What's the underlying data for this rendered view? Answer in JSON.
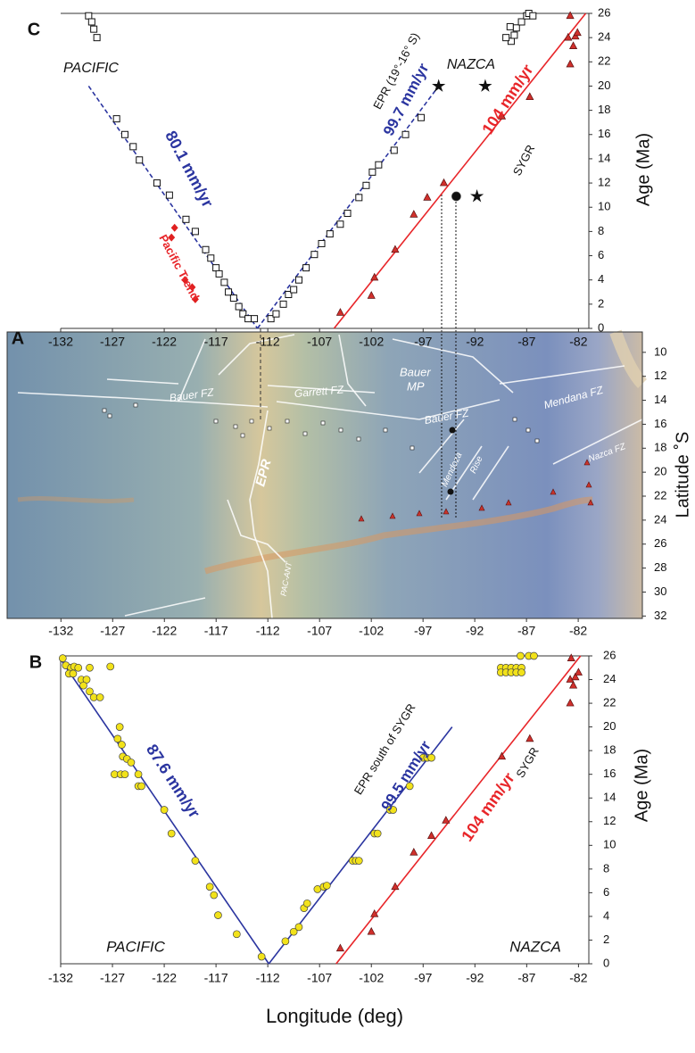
{
  "chart_data": [
    {
      "type": "scatter",
      "panel": "C",
      "ylabel": "Age (Ma)",
      "xlim": [
        -132,
        -81
      ],
      "ylim": [
        0,
        26
      ],
      "xticks": [
        -132,
        -127,
        -122,
        -117,
        -112,
        -107,
        -102,
        -97,
        -92,
        -87,
        -82
      ],
      "yticks": [
        0,
        2,
        4,
        6,
        8,
        10,
        12,
        14,
        16,
        18,
        20,
        22,
        24,
        26
      ],
      "annotations": [
        "PACIFIC",
        "NAZCA",
        "80.1 mm/yr",
        "EPR (19°-16° S)",
        "99.7 mm/yr",
        "104 mm/yr",
        "SYGR",
        "Pacific Trend"
      ],
      "series": [
        {
          "mode": "line",
          "color": "#2b35a0",
          "dash": true,
          "x": [
            -129.3,
            -113.0
          ],
          "values": [
            20,
            0
          ]
        },
        {
          "mode": "line",
          "color": "#2b35a0",
          "dash": true,
          "x": [
            -113.0,
            -95.5
          ],
          "values": [
            0,
            20
          ]
        },
        {
          "mode": "line",
          "color": "#e8262a",
          "dash": false,
          "x": [
            -105.6,
            -81.3
          ],
          "values": [
            0,
            26
          ]
        },
        {
          "mode": "markers",
          "marker": "square",
          "color": "#111111",
          "x": [
            -129.3,
            -129,
            -128.8,
            -128.5,
            -126.6,
            -125.8,
            -125,
            -124.4,
            -122.7,
            -121.5,
            -119.9,
            -119,
            -118,
            -117.5,
            -117,
            -116.7,
            -116.2,
            -115.8,
            -115.3,
            -114.8,
            -114.4,
            -113.9,
            -113.3,
            -111.7,
            -111.2,
            -110.5,
            -110,
            -109.5,
            -109,
            -108.3,
            -107.5,
            -106.8,
            -106,
            -105,
            -104.3,
            -103.2,
            -102.5,
            -101.9,
            -101.3,
            -99.8,
            -98.7,
            -97.2,
            -88.5,
            -88.2,
            -88,
            -87.5,
            -87,
            -86.8,
            -89,
            -88.6,
            -86.4
          ],
          "values": [
            25.8,
            25.3,
            24.7,
            24,
            17.3,
            16,
            15,
            13.9,
            12,
            11,
            9,
            8,
            6.5,
            5.8,
            5,
            4.5,
            3.8,
            3,
            2.5,
            1.8,
            1.2,
            0.8,
            0.8,
            0.8,
            1.2,
            2,
            2.8,
            3.2,
            4,
            5,
            6.1,
            7,
            7.8,
            8.6,
            9.5,
            10.8,
            11.8,
            12.9,
            13.5,
            14.7,
            16,
            17.4,
            23.7,
            24.2,
            24.8,
            25.3,
            25.8,
            26,
            24,
            24.9,
            25.8
          ]
        },
        {
          "mode": "markers",
          "marker": "triangle",
          "color": "#d0302c",
          "x": [
            -105,
            -102,
            -101.7,
            -99.7,
            -97.9,
            -96.6,
            -95,
            -89.4,
            -86.7,
            -82.8,
            -83,
            -82.3,
            -82.5,
            -82.1,
            -82.8
          ],
          "values": [
            1.3,
            2.7,
            4.2,
            6.5,
            9.4,
            10.8,
            12,
            17.5,
            19.1,
            21.8,
            24,
            24.1,
            23.3,
            24.4,
            25.8
          ]
        },
        {
          "mode": "markers",
          "marker": "diamond",
          "color": "#e02020",
          "x": [
            -121,
            -121.3,
            -120,
            -119.3,
            -119
          ],
          "values": [
            8.3,
            7.5,
            4,
            3.4,
            2.4
          ]
        },
        {
          "mode": "markers",
          "marker": "star",
          "color": "#111111",
          "x": [
            -95.5,
            -91,
            -91.8
          ],
          "values": [
            20,
            20,
            10.9
          ]
        },
        {
          "mode": "markers",
          "marker": "circle",
          "color": "#111111",
          "x": [
            -93.8
          ],
          "values": [
            10.9
          ]
        }
      ]
    },
    {
      "type": "map",
      "panel": "A",
      "ylabel": "Latitude ˚S",
      "xlim": [
        -137.2,
        -75.8
      ],
      "ylim": [
        8.3,
        32.2
      ],
      "y_inverted": true,
      "xticks": [
        -132,
        -127,
        -122,
        -117,
        -112,
        -107,
        -102,
        -97,
        -92,
        -87,
        -82
      ],
      "yticks": [
        10,
        12,
        14,
        16,
        18,
        20,
        22,
        24,
        26,
        28,
        30,
        32
      ],
      "labels": [
        "Bauer FZ",
        "Garrett FZ",
        "Bauer",
        "MP",
        "Mendana FZ",
        "Bauer FZ",
        "EPR",
        "Mendoza",
        "Rise",
        "Nazca FZ",
        "PAC-ANT"
      ],
      "series": []
    },
    {
      "type": "scatter",
      "panel": "B",
      "ylabel": "Age (Ma)",
      "xlabel": "Longitude (deg)",
      "xlim": [
        -132,
        -81
      ],
      "ylim": [
        0,
        26
      ],
      "xticks": [
        -132,
        -127,
        -122,
        -117,
        -112,
        -107,
        -102,
        -97,
        -92,
        -87,
        -82
      ],
      "yticks": [
        0,
        2,
        4,
        6,
        8,
        10,
        12,
        14,
        16,
        18,
        20,
        22,
        24,
        26
      ],
      "annotations": [
        "87.6 mm/yr",
        "EPR  south of  SYGR",
        "99.5 mm/yr",
        "104 mm/yr",
        "SYGR",
        "PACIFIC",
        "NAZCA"
      ],
      "series": [
        {
          "mode": "line",
          "color": "#2b35a0",
          "dash": false,
          "x": [
            -132,
            -111.9
          ],
          "values": [
            25.7,
            0
          ]
        },
        {
          "mode": "line",
          "color": "#2b35a0",
          "dash": false,
          "x": [
            -111.9,
            -94.2
          ],
          "values": [
            0,
            20
          ]
        },
        {
          "mode": "line",
          "color": "#e8262a",
          "dash": false,
          "x": [
            -105.4,
            -81.8
          ],
          "values": [
            0,
            26
          ]
        },
        {
          "mode": "markers",
          "marker": "circle",
          "color": "#f2e21a",
          "x": [
            -131.8,
            -131.5,
            -131,
            -130.7,
            -130.3,
            -131.2,
            -130.8,
            -130,
            -129.5,
            -129.8,
            -129.2,
            -128.8,
            -128.2,
            -129.2,
            -127.2,
            -126.3,
            -126.5,
            -126.1,
            -126,
            -125.6,
            -125.2,
            -126.8,
            -126.2,
            -125.8,
            -124.5,
            -124.5,
            -124.2,
            -122,
            -121.3,
            -119,
            -117.6,
            -117.2,
            -116.8,
            -115,
            -112.6,
            -110.3,
            -109.5,
            -109,
            -108.5,
            -108.2,
            -107.2,
            -106.6,
            -106.3,
            -103.8,
            -103.5,
            -103.2,
            -101.7,
            -101.4,
            -100.2,
            -99.9,
            -98.3,
            -97,
            -96.6,
            -96.2,
            -89.5,
            -89,
            -88.5,
            -88,
            -87.5,
            -89.5,
            -89,
            -88.5,
            -88,
            -87.5,
            -87.6,
            -86.8,
            -86.3
          ],
          "values": [
            25.8,
            25.2,
            25,
            25.1,
            25,
            24.5,
            24.5,
            24,
            24,
            23.5,
            23,
            22.5,
            22.5,
            25,
            25.1,
            20,
            19,
            18.5,
            17.5,
            17.3,
            17,
            16,
            16,
            16,
            16,
            15,
            15,
            13,
            11,
            8.7,
            6.5,
            5.8,
            4.1,
            2.5,
            0.6,
            1.9,
            2.7,
            3.1,
            4.7,
            5.1,
            6.3,
            6.5,
            6.6,
            8.7,
            8.7,
            8.7,
            11,
            11,
            13,
            13,
            15,
            17.4,
            17.4,
            17.4,
            25,
            25,
            25,
            25,
            25,
            24.6,
            24.6,
            24.6,
            24.6,
            24.6,
            26,
            26,
            26
          ]
        },
        {
          "mode": "markers",
          "marker": "triangle",
          "color": "#d0302c",
          "x": [
            -105,
            -102,
            -101.7,
            -99.7,
            -97.9,
            -96.2,
            -94.8,
            -89.4,
            -86.7,
            -82.8,
            -82.8,
            -82.3,
            -82.5,
            -82,
            -82.7
          ],
          "values": [
            1.3,
            2.7,
            4.2,
            6.5,
            9.4,
            10.8,
            12.1,
            17.5,
            19,
            22,
            24,
            24.2,
            23.5,
            24.6,
            25.8
          ]
        }
      ]
    }
  ]
}
